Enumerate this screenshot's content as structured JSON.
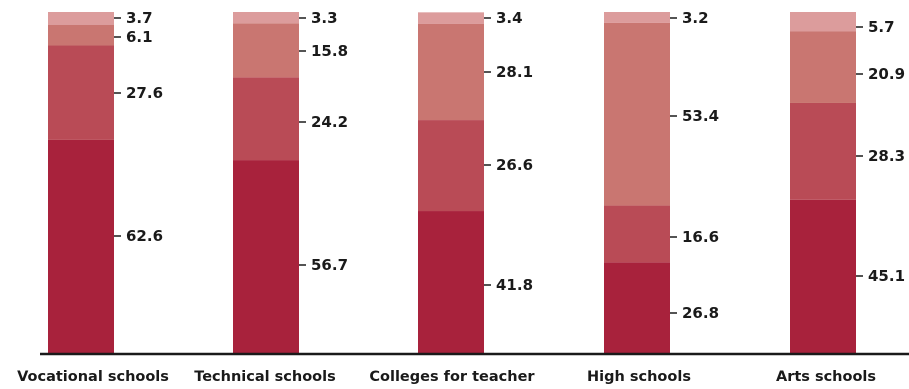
{
  "chart_data": {
    "type": "bar",
    "stacked": true,
    "normalized_to": 100,
    "categories": [
      "Vocational schools",
      "Technical schools",
      "Colleges for teacher",
      "High schools",
      "Arts schools"
    ],
    "series": [
      {
        "values": [
          62.6,
          56.7,
          41.8,
          26.8,
          45.1
        ],
        "color": "#a8223c"
      },
      {
        "values": [
          27.6,
          24.2,
          26.6,
          16.6,
          28.3
        ],
        "color": "#b94b56"
      },
      {
        "values": [
          6.1,
          15.8,
          28.1,
          53.4,
          20.9
        ],
        "color": "#c97671"
      },
      {
        "values": [
          3.7,
          3.3,
          3.4,
          3.2,
          5.7
        ],
        "color": "#dc9c9c"
      }
    ],
    "ylim": [
      0,
      100
    ],
    "grid": false,
    "legend": "none"
  }
}
